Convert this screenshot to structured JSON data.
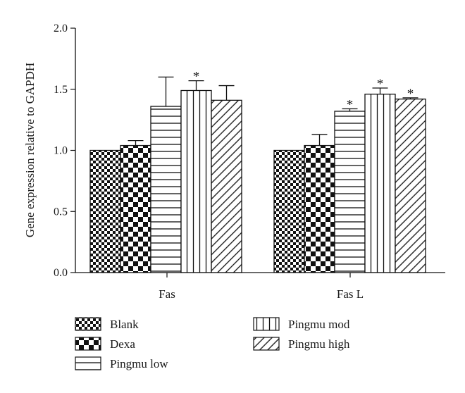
{
  "chart_data": {
    "type": "bar",
    "ylabel": "Gene expression relative to GAPDH",
    "ylim": [
      0,
      2.0
    ],
    "yticks": [
      "0.0",
      "0.5",
      "1.0",
      "1.5",
      "2.0"
    ],
    "categories": [
      "Fas",
      "Fas L"
    ],
    "grid": false,
    "legend_position": "bottom",
    "series": [
      {
        "name": "Blank",
        "pattern": "checker-small",
        "values": [
          1.0,
          1.0
        ],
        "errors": [
          0,
          0
        ],
        "significant": [
          false,
          false
        ]
      },
      {
        "name": "Dexa",
        "pattern": "checker-large",
        "values": [
          1.04,
          1.04
        ],
        "errors": [
          0.04,
          0.09
        ],
        "significant": [
          false,
          false
        ]
      },
      {
        "name": "Pingmu low",
        "pattern": "horizontal-lines",
        "values": [
          1.36,
          1.32
        ],
        "errors": [
          0.24,
          0.02
        ],
        "significant": [
          false,
          true
        ]
      },
      {
        "name": "Pingmu mod",
        "pattern": "vertical-lines",
        "values": [
          1.49,
          1.46
        ],
        "errors": [
          0.08,
          0.05
        ],
        "significant": [
          true,
          true
        ]
      },
      {
        "name": "Pingmu high",
        "pattern": "diagonal-lines",
        "values": [
          1.41,
          1.42
        ],
        "errors": [
          0.12,
          0.01
        ],
        "significant": [
          false,
          true
        ]
      }
    ],
    "significance_marker": "*"
  }
}
